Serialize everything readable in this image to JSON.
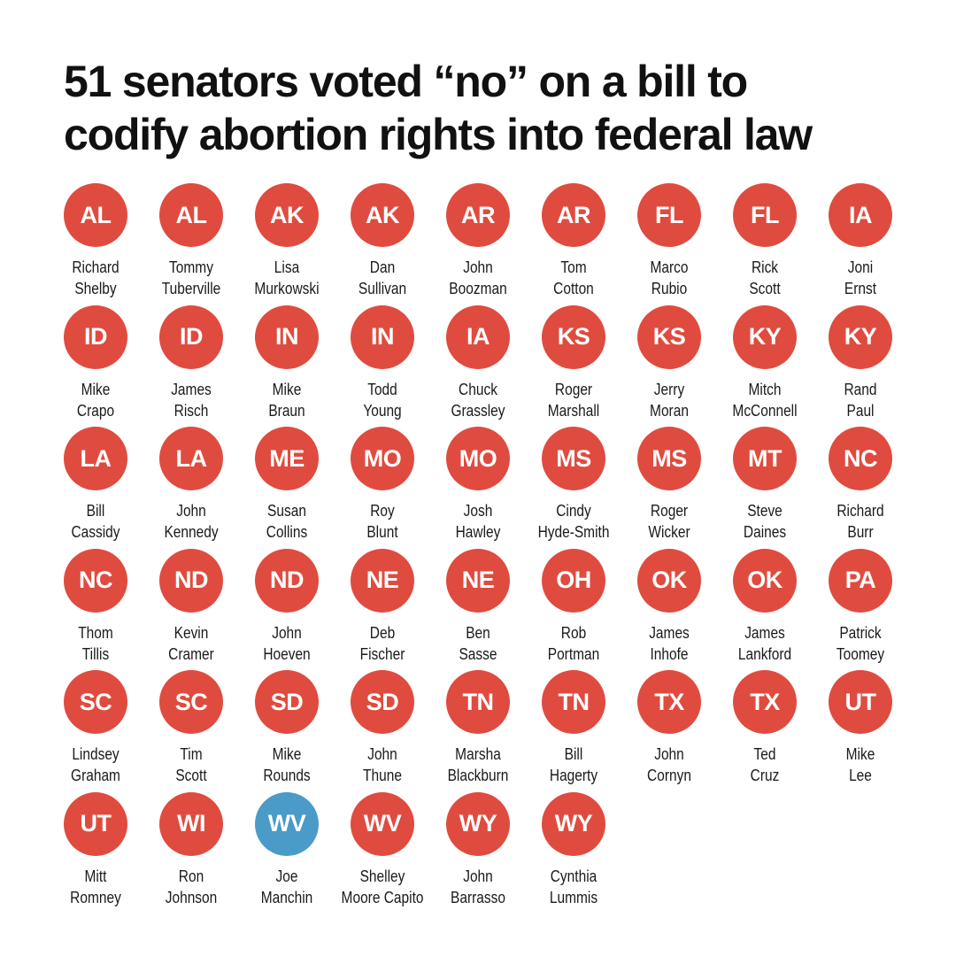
{
  "title": [
    "51 senators voted “no” on a bill to",
    "codify abortion rights into federal law"
  ],
  "colors": {
    "republican": "#e04b3f",
    "democrat": "#4a9bc7"
  },
  "senators": [
    {
      "state": "AL",
      "lines": [
        "Richard",
        "Shelby"
      ],
      "party": "republican"
    },
    {
      "state": "AL",
      "lines": [
        "Tommy",
        "Tuberville"
      ],
      "party": "republican"
    },
    {
      "state": "AK",
      "lines": [
        "Lisa",
        "Murkowski"
      ],
      "party": "republican"
    },
    {
      "state": "AK",
      "lines": [
        "Dan",
        "Sullivan"
      ],
      "party": "republican"
    },
    {
      "state": "AR",
      "lines": [
        "John",
        "Boozman"
      ],
      "party": "republican"
    },
    {
      "state": "AR",
      "lines": [
        "Tom",
        "Cotton"
      ],
      "party": "republican"
    },
    {
      "state": "FL",
      "lines": [
        "Marco",
        "Rubio"
      ],
      "party": "republican"
    },
    {
      "state": "FL",
      "lines": [
        "Rick",
        "Scott"
      ],
      "party": "republican"
    },
    {
      "state": "IA",
      "lines": [
        "Joni",
        "Ernst"
      ],
      "party": "republican"
    },
    {
      "state": "ID",
      "lines": [
        "Mike",
        "Crapo"
      ],
      "party": "republican"
    },
    {
      "state": "ID",
      "lines": [
        "James",
        "Risch"
      ],
      "party": "republican"
    },
    {
      "state": "IN",
      "lines": [
        "Mike",
        "Braun"
      ],
      "party": "republican"
    },
    {
      "state": "IN",
      "lines": [
        "Todd",
        "Young"
      ],
      "party": "republican"
    },
    {
      "state": "IA",
      "lines": [
        "Chuck",
        "Grassley"
      ],
      "party": "republican"
    },
    {
      "state": "KS",
      "lines": [
        "Roger",
        "Marshall"
      ],
      "party": "republican"
    },
    {
      "state": "KS",
      "lines": [
        "Jerry",
        "Moran"
      ],
      "party": "republican"
    },
    {
      "state": "KY",
      "lines": [
        "Mitch",
        "McConnell"
      ],
      "party": "republican"
    },
    {
      "state": "KY",
      "lines": [
        "Rand",
        "Paul"
      ],
      "party": "republican"
    },
    {
      "state": "LA",
      "lines": [
        "Bill",
        "Cassidy"
      ],
      "party": "republican"
    },
    {
      "state": "LA",
      "lines": [
        "John",
        "Kennedy"
      ],
      "party": "republican"
    },
    {
      "state": "ME",
      "lines": [
        "Susan",
        "Collins"
      ],
      "party": "republican"
    },
    {
      "state": "MO",
      "lines": [
        "Roy",
        "Blunt"
      ],
      "party": "republican"
    },
    {
      "state": "MO",
      "lines": [
        "Josh",
        "Hawley"
      ],
      "party": "republican"
    },
    {
      "state": "MS",
      "lines": [
        "Cindy",
        "Hyde-Smith"
      ],
      "party": "republican"
    },
    {
      "state": "MS",
      "lines": [
        "Roger",
        "Wicker"
      ],
      "party": "republican"
    },
    {
      "state": "MT",
      "lines": [
        "Steve",
        "Daines"
      ],
      "party": "republican"
    },
    {
      "state": "NC",
      "lines": [
        "Richard",
        "Burr"
      ],
      "party": "republican"
    },
    {
      "state": "NC",
      "lines": [
        "Thom",
        "Tillis"
      ],
      "party": "republican"
    },
    {
      "state": "ND",
      "lines": [
        "Kevin",
        "Cramer"
      ],
      "party": "republican"
    },
    {
      "state": "ND",
      "lines": [
        "John",
        "Hoeven"
      ],
      "party": "republican"
    },
    {
      "state": "NE",
      "lines": [
        "Deb",
        "Fischer"
      ],
      "party": "republican"
    },
    {
      "state": "NE",
      "lines": [
        "Ben",
        "Sasse"
      ],
      "party": "republican"
    },
    {
      "state": "OH",
      "lines": [
        "Rob",
        "Portman"
      ],
      "party": "republican"
    },
    {
      "state": "OK",
      "lines": [
        "James",
        "Inhofe"
      ],
      "party": "republican"
    },
    {
      "state": "OK",
      "lines": [
        "James",
        "Lankford"
      ],
      "party": "republican"
    },
    {
      "state": "PA",
      "lines": [
        "Patrick",
        "Toomey"
      ],
      "party": "republican"
    },
    {
      "state": "SC",
      "lines": [
        "Lindsey",
        "Graham"
      ],
      "party": "republican"
    },
    {
      "state": "SC",
      "lines": [
        "Tim",
        "Scott"
      ],
      "party": "republican"
    },
    {
      "state": "SD",
      "lines": [
        "Mike",
        "Rounds"
      ],
      "party": "republican"
    },
    {
      "state": "SD",
      "lines": [
        "John",
        "Thune"
      ],
      "party": "republican"
    },
    {
      "state": "TN",
      "lines": [
        "Marsha",
        "Blackburn"
      ],
      "party": "republican"
    },
    {
      "state": "TN",
      "lines": [
        "Bill",
        "Hagerty"
      ],
      "party": "republican"
    },
    {
      "state": "TX",
      "lines": [
        "John",
        "Cornyn"
      ],
      "party": "republican"
    },
    {
      "state": "TX",
      "lines": [
        "Ted",
        "Cruz"
      ],
      "party": "republican"
    },
    {
      "state": "UT",
      "lines": [
        "Mike",
        "Lee"
      ],
      "party": "republican"
    },
    {
      "state": "UT",
      "lines": [
        "Mitt",
        "Romney"
      ],
      "party": "republican"
    },
    {
      "state": "WI",
      "lines": [
        "Ron",
        "Johnson"
      ],
      "party": "republican"
    },
    {
      "state": "WV",
      "lines": [
        "Joe",
        "Manchin"
      ],
      "party": "democrat"
    },
    {
      "state": "WV",
      "lines": [
        "Shelley",
        "Moore Capito"
      ],
      "party": "republican"
    },
    {
      "state": "WY",
      "lines": [
        "John",
        "Barrasso"
      ],
      "party": "republican"
    },
    {
      "state": "WY",
      "lines": [
        "Cynthia",
        "Lummis"
      ],
      "party": "republican"
    }
  ]
}
